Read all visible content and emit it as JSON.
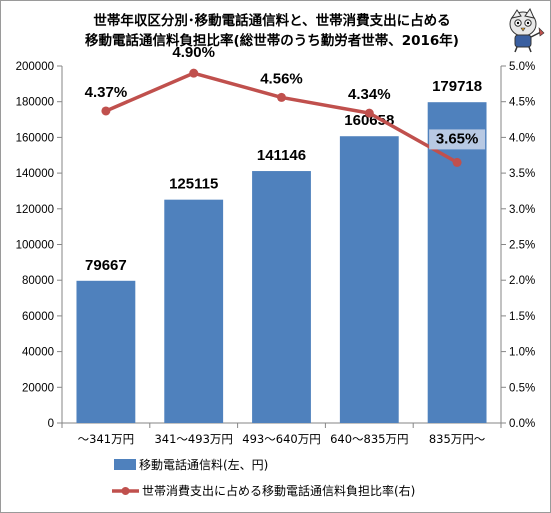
{
  "chart_data": {
    "type": "bar",
    "title_lines": [
      "世帯年収区分別･移動電話通信料と、世帯消費支出に占める",
      "移動電話通信料負担比率(総世帯のうち勤労者世帯、2016年)"
    ],
    "categories": [
      "～341万円",
      "341～493万円",
      "493～640万円",
      "640～835万円",
      "835万円～"
    ],
    "series": [
      {
        "name": "移動電話通信料(左、円)",
        "type": "bar",
        "axis": "left",
        "values": [
          79667,
          125115,
          141146,
          160658,
          179718
        ],
        "labels": [
          "79667",
          "125115",
          "141146",
          "160658",
          "179718"
        ],
        "color": "#4f81bd"
      },
      {
        "name": "世帯消費支出に占める移動電話通信料負担比率(右)",
        "type": "line",
        "axis": "right",
        "values": [
          4.37,
          4.9,
          4.56,
          4.34,
          3.65
        ],
        "labels": [
          "4.37%",
          "4.90%",
          "4.56%",
          "4.34%",
          "3.65%"
        ],
        "color": "#c0504d"
      }
    ],
    "y_left": {
      "range": [
        0,
        200000
      ],
      "ticks": [
        "0",
        "20000",
        "40000",
        "60000",
        "80000",
        "100000",
        "120000",
        "140000",
        "160000",
        "180000",
        "200000"
      ]
    },
    "y_right": {
      "range": [
        0,
        5
      ],
      "ticks": [
        "0.0%",
        "0.5%",
        "1.0%",
        "1.5%",
        "2.0%",
        "2.5%",
        "3.0%",
        "3.5%",
        "4.0%",
        "4.5%",
        "5.0%"
      ]
    },
    "grid": false,
    "legend_position": "bottom",
    "mascot_icon": "mascot-illustration"
  }
}
